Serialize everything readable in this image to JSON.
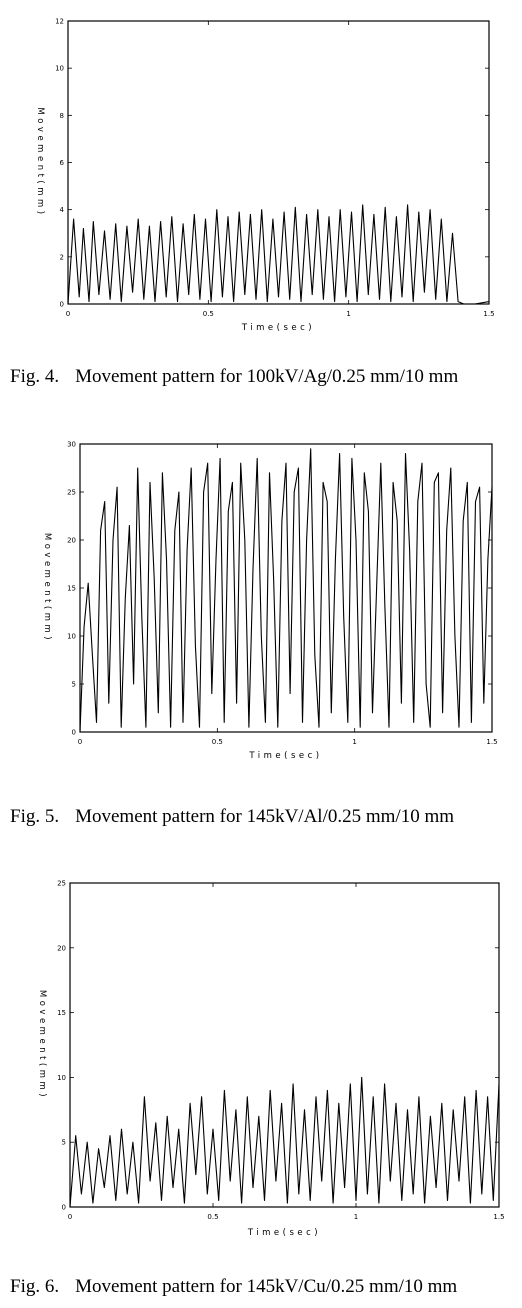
{
  "figures": [
    {
      "caption_number": "Fig. 4.",
      "caption_text": "Movement pattern for 100kV/Ag/0.25 mm/10 mm"
    },
    {
      "caption_number": "Fig. 5.",
      "caption_text": "Movement pattern for 145kV/Al/0.25 mm/10 mm"
    },
    {
      "caption_number": "Fig. 6.",
      "caption_text": "Movement pattern for 145kV/Cu/0.25 mm/10 mm"
    }
  ],
  "chart_data": [
    {
      "type": "line",
      "xlabel": "Time(sec)",
      "ylabel": "Movement(mm)",
      "xlim": [
        0,
        1.5
      ],
      "ylim": [
        0,
        12
      ],
      "xticks": [
        "0",
        "0.5",
        "1",
        "1.5"
      ],
      "yticks": [
        "0",
        "2",
        "4",
        "6",
        "8",
        "10",
        "12"
      ],
      "grid": false,
      "series": [
        {
          "x": [
            0,
            0.02,
            0.04,
            0.055,
            0.075,
            0.09,
            0.11,
            0.13,
            0.15,
            0.17,
            0.19,
            0.21,
            0.23,
            0.25,
            0.27,
            0.29,
            0.31,
            0.33,
            0.35,
            0.37,
            0.39,
            0.41,
            0.43,
            0.45,
            0.47,
            0.49,
            0.51,
            0.53,
            0.55,
            0.57,
            0.59,
            0.61,
            0.63,
            0.65,
            0.67,
            0.69,
            0.71,
            0.73,
            0.75,
            0.77,
            0.79,
            0.81,
            0.83,
            0.85,
            0.87,
            0.89,
            0.91,
            0.93,
            0.95,
            0.97,
            0.99,
            1.01,
            1.03,
            1.05,
            1.07,
            1.09,
            1.11,
            1.13,
            1.15,
            1.17,
            1.19,
            1.21,
            1.23,
            1.25,
            1.27,
            1.29,
            1.31,
            1.33,
            1.35,
            1.37,
            1.39,
            1.41,
            1.45,
            1.5
          ],
          "y": [
            0,
            3.6,
            0.3,
            3.2,
            0.1,
            3.5,
            0.4,
            3.1,
            0.2,
            3.4,
            0.1,
            3.3,
            0.5,
            3.6,
            0.2,
            3.3,
            0.1,
            3.5,
            0.3,
            3.7,
            0.1,
            3.4,
            0.4,
            3.8,
            0.2,
            3.6,
            0.1,
            4.0,
            0.3,
            3.7,
            0.1,
            3.9,
            0.4,
            3.8,
            0.2,
            4.0,
            0.1,
            3.6,
            0.3,
            3.9,
            0.2,
            4.1,
            0.1,
            3.8,
            0.4,
            4.0,
            0.2,
            3.7,
            0.1,
            4.0,
            0.3,
            3.9,
            0.1,
            4.2,
            0.4,
            3.8,
            0.2,
            4.1,
            0.1,
            3.7,
            0.3,
            4.2,
            0.1,
            3.9,
            0.5,
            4.0,
            0.2,
            3.6,
            0.1,
            3.0,
            0.1,
            0,
            0,
            0.1
          ]
        }
      ]
    },
    {
      "type": "line",
      "xlabel": "Time(sec)",
      "ylabel": "Movement(mm)",
      "xlim": [
        0,
        1.5
      ],
      "ylim": [
        0,
        30
      ],
      "xticks": [
        "0",
        "0.5",
        "1",
        "1.5"
      ],
      "yticks": [
        "0",
        "5",
        "10",
        "15",
        "20",
        "25",
        "30"
      ],
      "grid": false,
      "series": [
        {
          "x": [
            0,
            0.015,
            0.03,
            0.045,
            0.06,
            0.075,
            0.09,
            0.105,
            0.12,
            0.135,
            0.15,
            0.165,
            0.18,
            0.195,
            0.21,
            0.225,
            0.24,
            0.255,
            0.27,
            0.285,
            0.3,
            0.315,
            0.33,
            0.345,
            0.36,
            0.375,
            0.39,
            0.405,
            0.42,
            0.435,
            0.45,
            0.465,
            0.48,
            0.495,
            0.51,
            0.525,
            0.54,
            0.555,
            0.57,
            0.585,
            0.6,
            0.615,
            0.63,
            0.645,
            0.66,
            0.675,
            0.69,
            0.705,
            0.72,
            0.735,
            0.75,
            0.765,
            0.78,
            0.795,
            0.81,
            0.825,
            0.84,
            0.855,
            0.87,
            0.885,
            0.9,
            0.915,
            0.93,
            0.945,
            0.96,
            0.975,
            0.99,
            1.005,
            1.02,
            1.035,
            1.05,
            1.065,
            1.08,
            1.095,
            1.11,
            1.125,
            1.14,
            1.155,
            1.17,
            1.185,
            1.2,
            1.215,
            1.23,
            1.245,
            1.26,
            1.275,
            1.29,
            1.305,
            1.32,
            1.335,
            1.35,
            1.365,
            1.38,
            1.395,
            1.41,
            1.425,
            1.44,
            1.455,
            1.47,
            1.485,
            1.5
          ],
          "y": [
            0,
            11,
            15.5,
            8,
            1,
            21,
            24,
            3,
            20,
            25.5,
            0.5,
            14,
            21.5,
            5,
            27.5,
            12,
            0.5,
            26,
            16,
            2,
            27,
            18,
            0.5,
            21,
            25,
            1,
            19,
            27.5,
            9,
            0.5,
            25,
            28,
            4,
            18,
            28.5,
            1,
            23,
            26,
            3,
            28,
            20,
            0.5,
            17,
            28.5,
            10,
            1,
            27,
            16,
            0.5,
            22,
            28,
            4,
            25,
            27.5,
            1,
            20,
            29.5,
            8,
            0.5,
            26,
            24,
            2,
            18,
            29,
            12,
            1,
            28.5,
            20,
            0.5,
            27,
            23,
            2,
            15,
            28,
            13,
            0.5,
            26,
            22,
            3,
            29,
            19,
            1,
            24,
            28,
            5,
            0.5,
            26,
            27,
            2,
            21,
            27.5,
            10,
            0.5,
            22,
            26,
            1,
            24,
            25.5,
            3,
            18,
            25.5
          ]
        }
      ]
    },
    {
      "type": "line",
      "xlabel": "Time(sec)",
      "ylabel": "Movement(mm)",
      "xlim": [
        0,
        1.5
      ],
      "ylim": [
        0,
        25
      ],
      "xticks": [
        "0",
        "0.5",
        "1",
        "1.5"
      ],
      "yticks": [
        "0",
        "5",
        "10",
        "15",
        "20",
        "25"
      ],
      "grid": false,
      "series": [
        {
          "x": [
            0,
            0.02,
            0.04,
            0.06,
            0.08,
            0.1,
            0.12,
            0.14,
            0.16,
            0.18,
            0.2,
            0.22,
            0.24,
            0.26,
            0.28,
            0.3,
            0.32,
            0.34,
            0.36,
            0.38,
            0.4,
            0.42,
            0.44,
            0.46,
            0.48,
            0.5,
            0.52,
            0.54,
            0.56,
            0.58,
            0.6,
            0.62,
            0.64,
            0.66,
            0.68,
            0.7,
            0.72,
            0.74,
            0.76,
            0.78,
            0.8,
            0.82,
            0.84,
            0.86,
            0.88,
            0.9,
            0.92,
            0.94,
            0.96,
            0.98,
            1.0,
            1.02,
            1.04,
            1.06,
            1.08,
            1.1,
            1.12,
            1.14,
            1.16,
            1.18,
            1.2,
            1.22,
            1.24,
            1.26,
            1.28,
            1.3,
            1.32,
            1.34,
            1.36,
            1.38,
            1.4,
            1.42,
            1.44,
            1.46,
            1.48,
            1.5
          ],
          "y": [
            0,
            5.5,
            1,
            5,
            0.3,
            4.5,
            1.5,
            5.5,
            0.5,
            6,
            1,
            5,
            0.3,
            8.5,
            2,
            6.5,
            0.5,
            7,
            1.5,
            6,
            0.3,
            8,
            2.5,
            8.5,
            1,
            6,
            0.5,
            9,
            2,
            7.5,
            0.3,
            8.5,
            1.5,
            7,
            0.5,
            9,
            2,
            8,
            0.3,
            9.5,
            1,
            7.5,
            0.5,
            8.5,
            2,
            9,
            0.3,
            8,
            1.5,
            9.5,
            0.5,
            10,
            1,
            8.5,
            0.3,
            9.5,
            2,
            8,
            0.5,
            7.5,
            1,
            8.5,
            0.3,
            7,
            1.5,
            8,
            0.5,
            7.5,
            2,
            8.5,
            0.3,
            9,
            1,
            8.5,
            0.5,
            9.5
          ]
        }
      ]
    }
  ]
}
